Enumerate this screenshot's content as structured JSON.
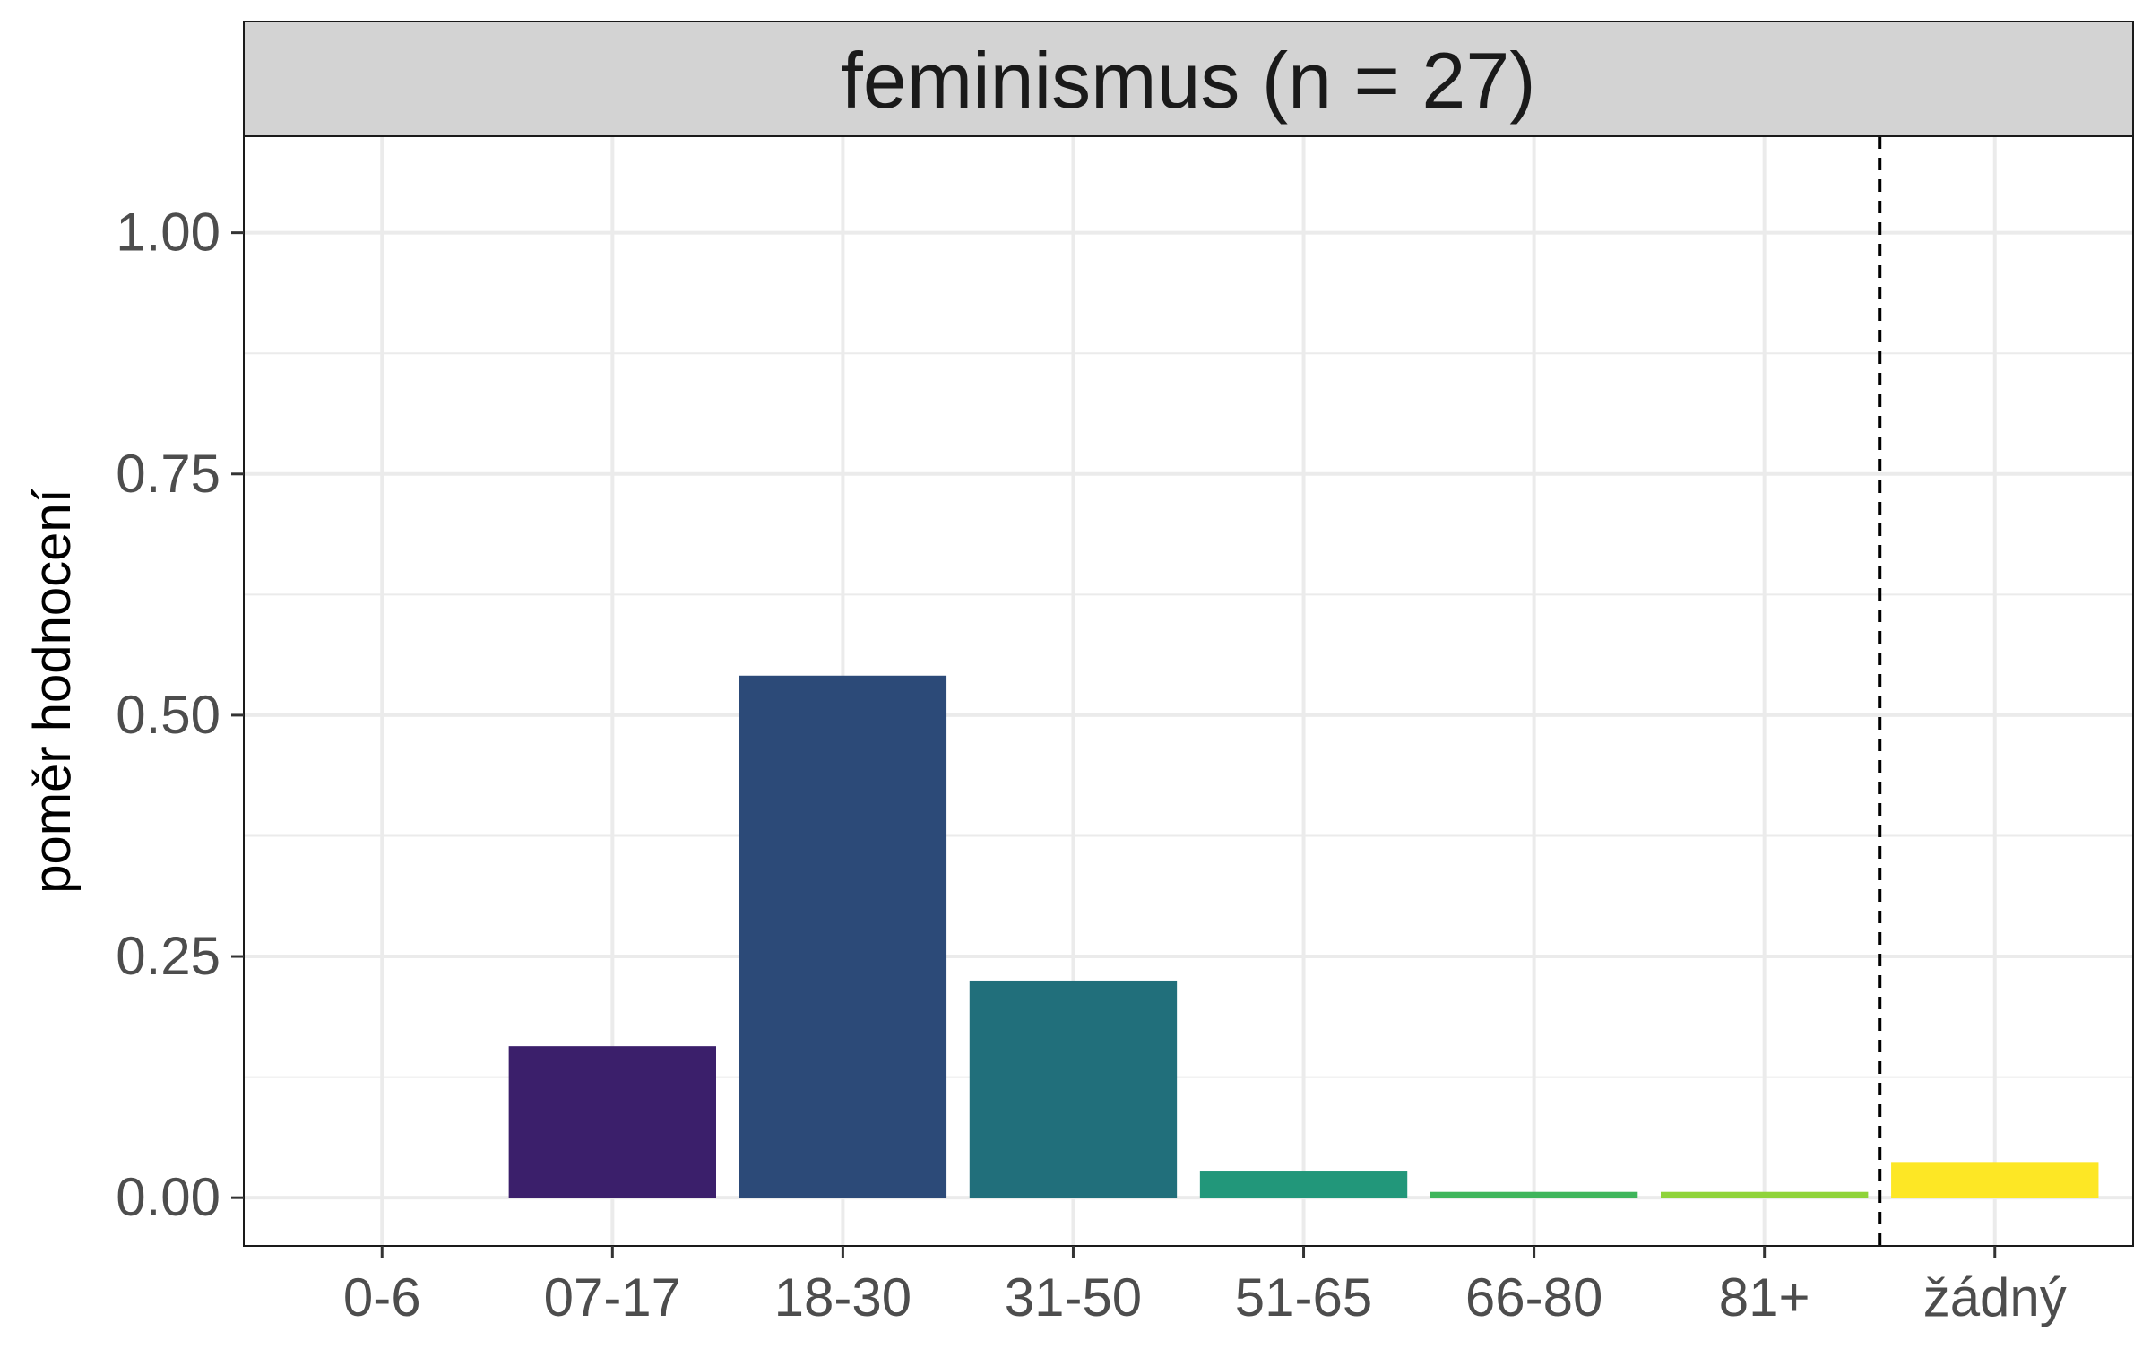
{
  "chart_data": {
    "type": "bar",
    "title": "feminismus (n = 27)",
    "xlabel": "",
    "ylabel": "poměr hodnocení",
    "categories": [
      "0-6",
      "07-17",
      "18-30",
      "31-50",
      "51-65",
      "66-80",
      "81+",
      "žádný"
    ],
    "values": [
      0.0,
      0.157,
      0.541,
      0.225,
      0.028,
      0.006,
      0.006,
      0.037
    ],
    "colors": [
      "#440154",
      "#3b1f6b",
      "#2c4a78",
      "#216f7b",
      "#22977a",
      "#3fb55b",
      "#8fd33a",
      "#fde725"
    ],
    "ylim": [
      -0.05,
      1.1
    ],
    "yticks": [
      0.0,
      0.25,
      0.5,
      0.75,
      1.0
    ],
    "ytick_labels": [
      "0.00",
      "0.25",
      "0.50",
      "0.75",
      "1.00"
    ],
    "separator_after_category": "81+",
    "grid": true,
    "strip_color": "#d3d3d3",
    "axis_text_color": "#4d4d4d"
  }
}
